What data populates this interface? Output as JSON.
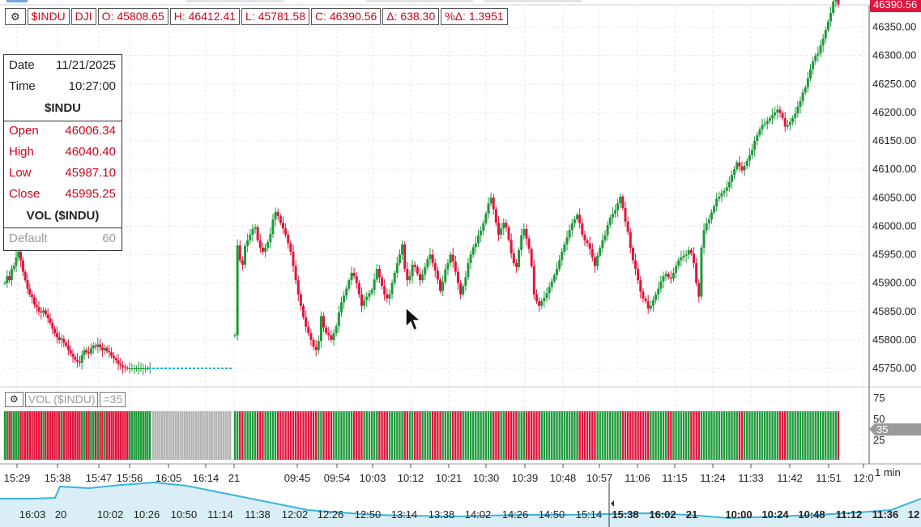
{
  "header": {
    "gear_icon": "gear-icon",
    "symbol": "$INDU",
    "exchange": "DJI",
    "open": "O: 45808.65",
    "high": "H: 46412.41",
    "low": "L: 45781.58",
    "close": "C: 46390.56",
    "change": "Δ: 638.30",
    "pct_change": "%Δ: 1.3951"
  },
  "data_window": {
    "date_label": "Date",
    "date_value": "11/21/2025",
    "time_label": "Time",
    "time_value": "10:27:00",
    "symbol": "$INDU",
    "open_label": "Open",
    "open_value": "46006.34",
    "high_label": "High",
    "high_value": "46040.40",
    "low_label": "Low",
    "low_value": "45987.10",
    "close_label": "Close",
    "close_value": "45995.25",
    "vol_title": "VOL ($INDU)",
    "default_label": "Default",
    "default_value": "60"
  },
  "volume_panel": {
    "gear_icon": "gear-icon",
    "title": "VOL ($INDU)",
    "param": "=35",
    "last_value_label": "35"
  },
  "interval_label": "1 min",
  "colors": {
    "up": "#1e9a3a",
    "down": "#e0143c",
    "ext": "#b3b3b3",
    "price_tag": "#e0143c",
    "grid": "#e6e6e6",
    "dotted": "#20b4d8",
    "overview": "#3cb3dd"
  },
  "chart_data": [
    {
      "type": "candlestick",
      "symbol": "$INDU",
      "interval": "1 min",
      "ylim": [
        45710,
        46420
      ],
      "y_ticks": [
        "45750.00",
        "45800.00",
        "45850.00",
        "45900.00",
        "45950.00",
        "46000.00",
        "46050.00",
        "46100.00",
        "46150.00",
        "46200.00",
        "46250.00",
        "46300.00",
        "46350.00"
      ],
      "last_price_label": "46390.56",
      "grid": true,
      "x_tick_labels": [
        "15:29",
        "15:38",
        "15:47",
        "15:56",
        "16:05",
        "16:14",
        "21",
        "09:45",
        "09:54",
        "10:03",
        "10:12",
        "10:21",
        "10:30",
        "10:39",
        "10:48",
        "10:57",
        "11:06",
        "11:15",
        "11:24",
        "11:33",
        "11:42",
        "11:51",
        "12:0"
      ],
      "segments": [
        {
          "name": "prior_session",
          "closes": [
            45900,
            45912,
            45905,
            45925,
            45930,
            45945,
            45955,
            45940,
            45920,
            45905,
            45890,
            45880,
            45875,
            45862,
            45858,
            45850,
            45848,
            45852,
            45845,
            45838,
            45830,
            45820,
            45812,
            45805,
            45800,
            45802,
            45795,
            45790,
            45782,
            45776,
            45770,
            45765,
            45762,
            45760,
            45773,
            45782,
            45778,
            45776,
            45785,
            45790,
            45788,
            45792,
            45787,
            45782,
            45786,
            45780,
            45778,
            45772,
            45768,
            45764,
            45758,
            45755,
            45752,
            45751,
            45750,
            45750,
            45750,
            45750,
            45750,
            45750,
            45750,
            45750,
            45750,
            45750,
            45750
          ]
        },
        {
          "name": "extended_flat_line",
          "price": 45750
        },
        {
          "name": "today_session",
          "closes": [
            45808,
            45966,
            45940,
            45932,
            45965,
            45975,
            45985,
            45995,
            45998,
            45975,
            45962,
            45955,
            45962,
            45972,
            45986,
            46012,
            46025,
            46018,
            46006,
            45996,
            45985,
            45970,
            45955,
            45930,
            45905,
            45880,
            45860,
            45840,
            45823,
            45812,
            45800,
            45788,
            45782,
            45798,
            45842,
            45822,
            45812,
            45808,
            45800,
            45812,
            45824,
            45848,
            45866,
            45878,
            45890,
            45905,
            45918,
            45912,
            45900,
            45880,
            45860,
            45870,
            45876,
            45882,
            45888,
            45906,
            45925,
            45910,
            45895,
            45880,
            45873,
            45880,
            45900,
            45918,
            45935,
            45950,
            45968,
            45925,
            45905,
            45912,
            45932,
            45928,
            45916,
            45905,
            45915,
            45928,
            45942,
            45950,
            45935,
            45922,
            45906,
            45886,
            45902,
            45924,
            45935,
            45950,
            45938,
            45920,
            45900,
            45880,
            45895,
            45910,
            45935,
            45950,
            45963,
            45970,
            45984,
            45992,
            46005,
            46022,
            46040,
            46050,
            46030,
            46006,
            45985,
            45996,
            46006,
            45998,
            45976,
            45952,
            45935,
            45928,
            45958,
            45984,
            45995,
            45978,
            45960,
            45930,
            45880,
            45868,
            45860,
            45868,
            45874,
            45882,
            45893,
            45903,
            45914,
            45925,
            45940,
            45955,
            45968,
            45980,
            45993,
            46005,
            46012,
            46020,
            46005,
            45985,
            45975,
            45970,
            45960,
            45945,
            45930,
            45948,
            45962,
            45975,
            45984,
            46002,
            46015,
            46022,
            46028,
            46040,
            46052,
            46032,
            46008,
            45990,
            45962,
            45940,
            45925,
            45905,
            45885,
            45873,
            45868,
            45855,
            45860,
            45870,
            45880,
            45890,
            45903,
            45912,
            45916,
            45910,
            45908,
            45918,
            45930,
            45940,
            45945,
            45948,
            45950,
            45958,
            45952,
            45935,
            45900,
            45876,
            45962,
            45993,
            46005,
            46012,
            46024,
            46035,
            46048,
            46052,
            46058,
            46062,
            46068,
            46078,
            46090,
            46100,
            46112,
            46105,
            46098,
            46106,
            46115,
            46125,
            46134,
            46150,
            46160,
            46170,
            46178,
            46180,
            46185,
            46190,
            46195,
            46200,
            46205,
            46199,
            46190,
            46175,
            46178,
            46183,
            46190,
            46198,
            46210,
            46220,
            46235,
            46244,
            46260,
            46276,
            46290,
            46300,
            46304,
            46318,
            46330,
            46345,
            46360,
            46375,
            46395,
            46402,
            46390
          ]
        }
      ]
    },
    {
      "type": "bar",
      "name": "VOL ($INDU)",
      "y_ticks": [
        "75",
        "50",
        "25"
      ],
      "ylim": [
        0,
        85
      ],
      "last_value": 35,
      "note": "volume bars all reach approximately 56; colored by candle direction, gray during extended hours"
    },
    {
      "type": "area",
      "name": "overview_navigator",
      "x_tick_labels": [
        "16:03",
        "20",
        "10:02",
        "10:26",
        "10:50",
        "11:14",
        "11:38",
        "12:02",
        "12:26",
        "12:50",
        "13:14",
        "13:38",
        "14:02",
        "14:26",
        "14:50",
        "15:14",
        "15:38",
        "16:02",
        "21",
        "10:00",
        "10:24",
        "10:48",
        "11:12",
        "11:36",
        "12"
      ]
    }
  ]
}
